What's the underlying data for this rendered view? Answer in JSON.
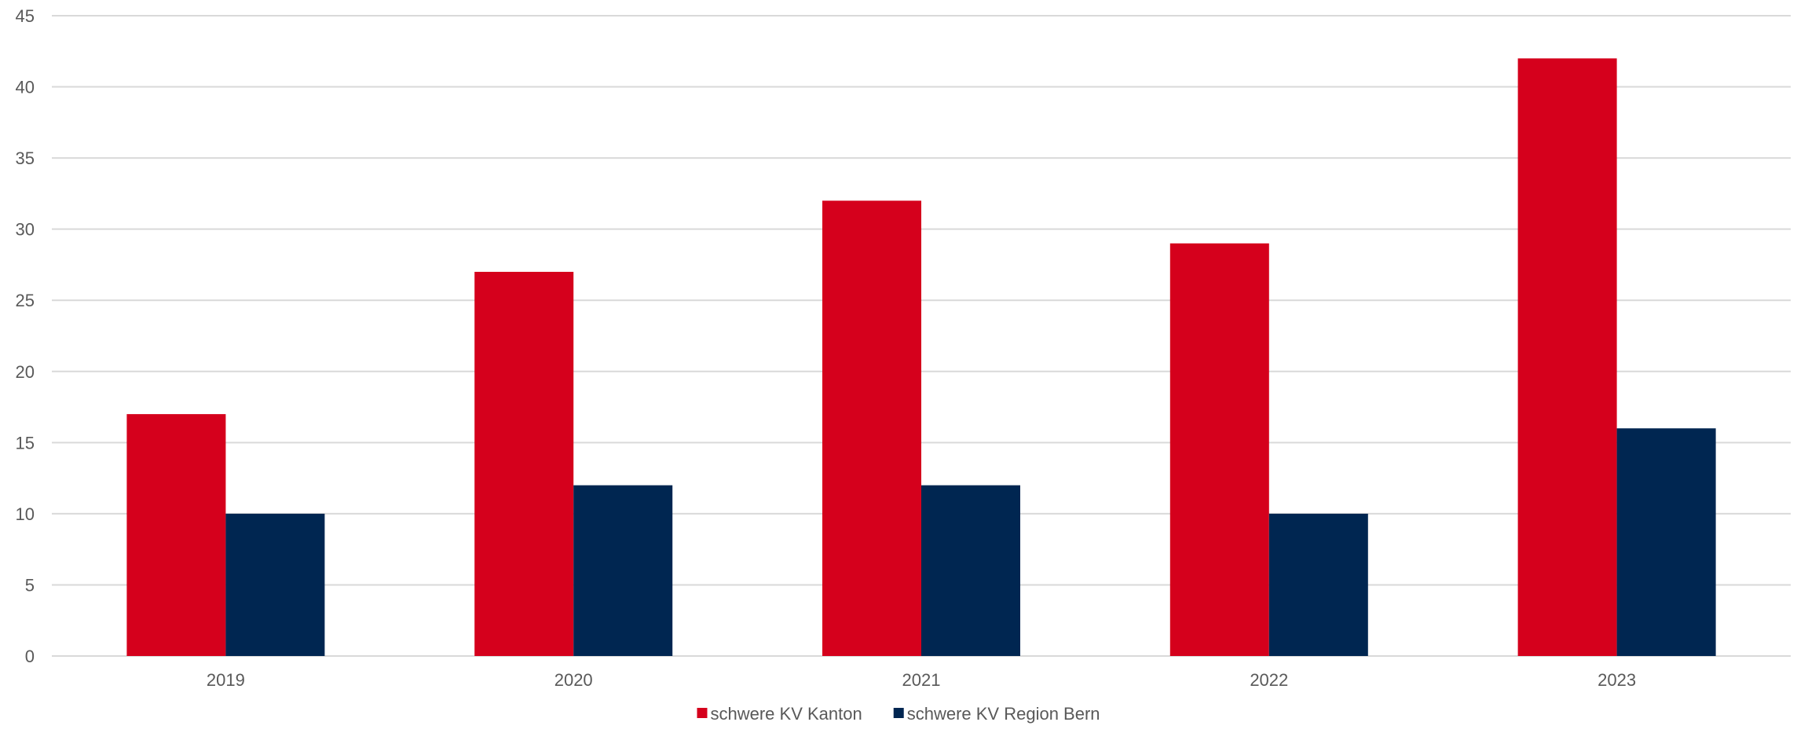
{
  "chart_data": {
    "type": "bar",
    "categories": [
      "2019",
      "2020",
      "2021",
      "2022",
      "2023"
    ],
    "series": [
      {
        "name": "schwere KV Kanton",
        "color": "#d5001c",
        "values": [
          17,
          27,
          32,
          29,
          42
        ]
      },
      {
        "name": "schwere KV Region Bern",
        "color": "#002651",
        "values": [
          10,
          12,
          12,
          10,
          16
        ]
      }
    ],
    "ylim": [
      0,
      45
    ],
    "yticks": [
      0,
      5,
      10,
      15,
      20,
      25,
      30,
      35,
      40,
      45
    ],
    "grid": true,
    "legend_position": "bottom-center",
    "colors": {
      "gridline": "#d9d9d9",
      "axis_text": "#595959"
    }
  }
}
